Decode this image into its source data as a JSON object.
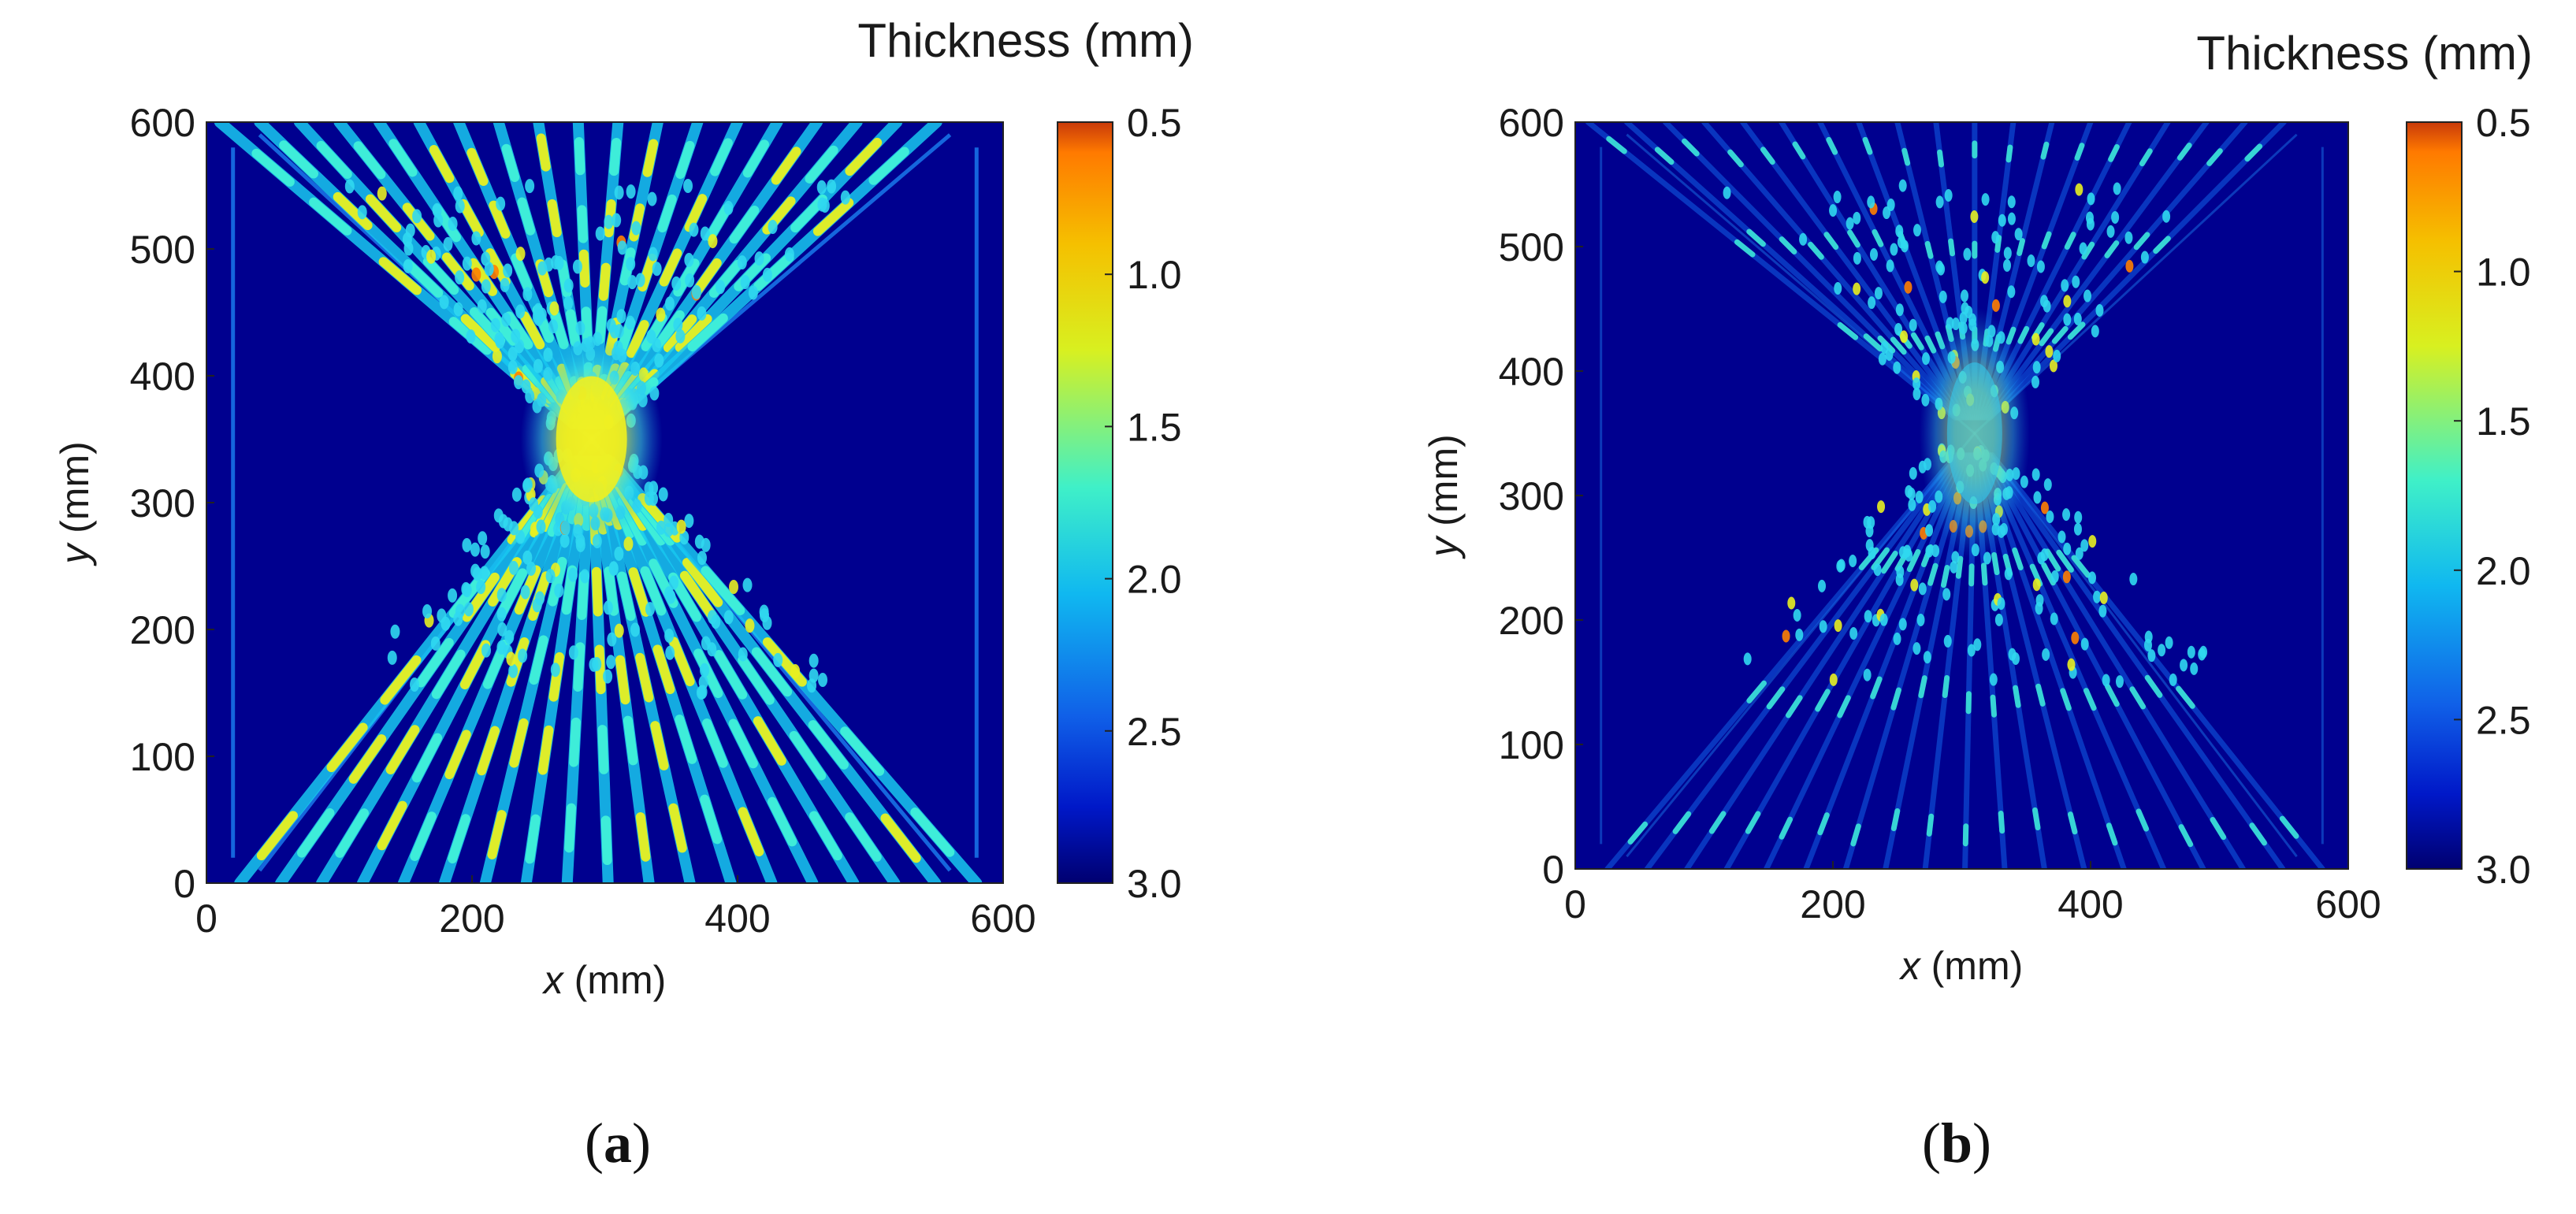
{
  "chart_data": [
    {
      "type": "heatmap",
      "panel_label": "a",
      "caption_open": "(",
      "caption_close": ")",
      "xlabel_var": "x",
      "xlabel_unit": " (mm)",
      "ylabel_var": "y",
      "ylabel_unit": " (mm)",
      "xlim": [
        0,
        600
      ],
      "ylim": [
        0,
        600
      ],
      "xticks": [
        "0",
        "200",
        "400",
        "600"
      ],
      "yticks": [
        "0",
        "100",
        "200",
        "300",
        "400",
        "500",
        "600"
      ],
      "colorbar": {
        "title": "Thickness (mm)",
        "ticks": [
          "0.5",
          "1.0",
          "1.5",
          "2.0",
          "2.5",
          "3.0"
        ],
        "range": [
          0.5,
          3.0
        ],
        "colormap": "jet (reversed: 0.5 = red/orange, 3.0 = dark blue)"
      },
      "description": "Thickness distribution with bright cyan/yellow fan of streaks converging to a center near (290, 350); dark blue background.",
      "center": [
        290,
        350
      ],
      "streak_count": 19
    },
    {
      "type": "heatmap",
      "panel_label": "b",
      "caption_open": "(",
      "caption_close": ")",
      "xlabel_var": "x",
      "xlabel_unit": " (mm)",
      "ylabel_var": "y",
      "ylabel_unit": " (mm)",
      "xlim": [
        0,
        600
      ],
      "ylim": [
        0,
        600
      ],
      "xticks": [
        "0",
        "200",
        "400",
        "600"
      ],
      "yticks": [
        "0",
        "100",
        "200",
        "300",
        "400",
        "500",
        "600"
      ],
      "colorbar": {
        "title": "Thickness (mm)",
        "ticks": [
          "0.5",
          "1.0",
          "1.5",
          "2.0",
          "2.5",
          "3.0"
        ],
        "range": [
          0.5,
          3.0
        ],
        "colormap": "jet (reversed: 0.5 = red/orange, 3.0 = dark blue)"
      },
      "description": "Thickness distribution mostly dark blue with sparse cyan dots and faint streak pattern concentrated near center (310, 350).",
      "center": [
        310,
        350
      ],
      "streak_count": 19
    }
  ],
  "colors": {
    "background": "#00008f",
    "streak_cyan": "#19d9f0",
    "streak_yellow": "#e6f020",
    "hot_orange": "#ff7f00",
    "text": "#1a1a1a"
  }
}
